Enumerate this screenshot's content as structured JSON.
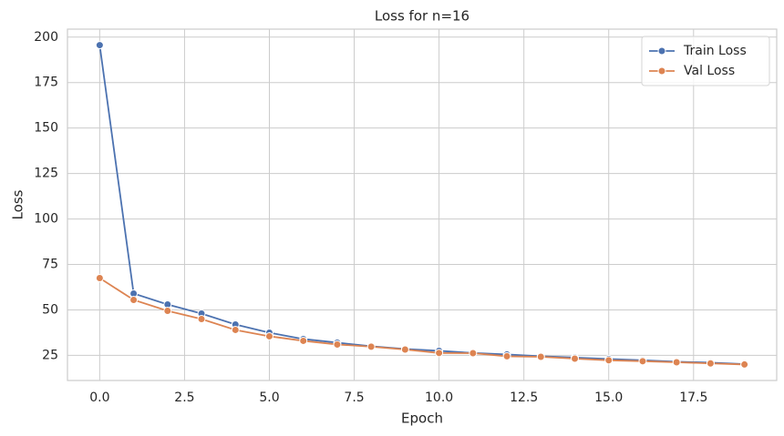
{
  "chart_data": {
    "type": "line",
    "title": "Loss for n=16",
    "x_label": "Epoch",
    "y_label": "Loss",
    "x": [
      0,
      1,
      2,
      3,
      4,
      5,
      6,
      7,
      8,
      9,
      10,
      11,
      12,
      13,
      14,
      15,
      16,
      17,
      18,
      19
    ],
    "series": [
      {
        "name": "Train Loss",
        "color": "#4c72b0",
        "values": [
          195.6,
          59,
          53,
          48,
          42,
          37.5,
          34,
          32,
          30,
          28.5,
          27.5,
          26.3,
          25.5,
          24.5,
          23.8,
          23,
          22.3,
          21.5,
          21,
          20.2
        ]
      },
      {
        "name": "Val Loss",
        "color": "#dd8452",
        "values": [
          67.5,
          55.5,
          49.5,
          45,
          39,
          35.5,
          33,
          31,
          29.8,
          28.2,
          26.3,
          26.2,
          24.5,
          24.2,
          23.2,
          22.3,
          21.8,
          21.2,
          20.6,
          20.0
        ]
      }
    ],
    "xlim": [
      -0.95,
      19.95
    ],
    "xticks": [
      {
        "value": 0,
        "label": "0.0"
      },
      2.5,
      {
        "value": 5,
        "label": "5.0"
      },
      7.5,
      {
        "value": 10,
        "label": "10.0"
      },
      12.5,
      {
        "value": 15,
        "label": "15.0"
      },
      17.5
    ],
    "ylim": [
      11.2,
      204.4
    ],
    "yticks": [
      25,
      50,
      75,
      100,
      125,
      150,
      175,
      200
    ],
    "grid": true,
    "legend": "upper right",
    "markers": true
  }
}
